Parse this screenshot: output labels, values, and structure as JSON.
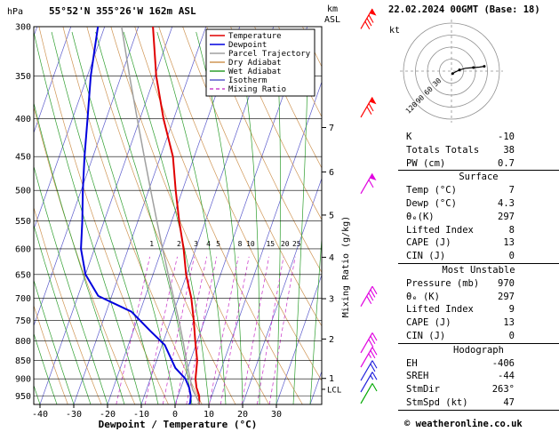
{
  "header": {
    "hpa_label": "hPa",
    "title": "55°52'N 355°26'W 162m ASL",
    "datetime": "22.02.2024 00GMT (Base: 18)",
    "km_label": "km",
    "asl_label": "ASL"
  },
  "legend": {
    "items": [
      {
        "label": "Temperature",
        "color": "#e00000",
        "dash": ""
      },
      {
        "label": "Dewpoint",
        "color": "#0000dd",
        "dash": ""
      },
      {
        "label": "Parcel Trajectory",
        "color": "#a0a0a0",
        "dash": ""
      },
      {
        "label": "Dry Adiabat",
        "color": "#cf9554",
        "dash": ""
      },
      {
        "label": "Wet Adiabat",
        "color": "#2e9e2e",
        "dash": ""
      },
      {
        "label": "Isotherm",
        "color": "#5c5ccc",
        "dash": ""
      },
      {
        "label": "Mixing Ratio",
        "color": "#cc44cc",
        "dash": "4 3"
      }
    ]
  },
  "axes": {
    "pressure_ticks": [
      300,
      350,
      400,
      450,
      500,
      550,
      600,
      650,
      700,
      750,
      800,
      850,
      900,
      950
    ],
    "temp_ticks": [
      -40,
      -30,
      -20,
      -10,
      0,
      10,
      20,
      30
    ],
    "x_label": "Dewpoint / Temperature (°C)",
    "mixing_ratio_axis_label": "Mixing Ratio (g/kg)",
    "km_ticks": [
      {
        "label": "7",
        "p": 411
      },
      {
        "label": "6",
        "p": 472
      },
      {
        "label": "5",
        "p": 540
      },
      {
        "label": "4",
        "p": 616
      },
      {
        "label": "3",
        "p": 701
      },
      {
        "label": "2",
        "p": 795
      },
      {
        "label": "1",
        "p": 899
      }
    ],
    "lcl": {
      "label": "LCL",
      "p": 930
    }
  },
  "chart_data": {
    "type": "line",
    "subtype": "skew-t log-p sounding",
    "pressure_range_hpa": [
      300,
      975
    ],
    "temperature_range_c": [
      -40,
      35
    ],
    "series": [
      {
        "name": "Temperature",
        "color": "#e00000",
        "width": 2,
        "points_p_t": [
          [
            975,
            6.6
          ],
          [
            970,
            7
          ],
          [
            950,
            6.3
          ],
          [
            925,
            4.6
          ],
          [
            900,
            3.4
          ],
          [
            850,
            2
          ],
          [
            800,
            -0.6
          ],
          [
            750,
            -3.2
          ],
          [
            700,
            -6.2
          ],
          [
            650,
            -10.2
          ],
          [
            600,
            -13.6
          ],
          [
            550,
            -17.8
          ],
          [
            500,
            -22
          ],
          [
            450,
            -26.3
          ],
          [
            400,
            -33
          ],
          [
            350,
            -39.6
          ],
          [
            300,
            -45.7
          ]
        ]
      },
      {
        "name": "Dewpoint",
        "color": "#0000dd",
        "width": 2,
        "points_p_t": [
          [
            975,
            4.2
          ],
          [
            970,
            4.3
          ],
          [
            950,
            3.8
          ],
          [
            925,
            2.4
          ],
          [
            900,
            0.4
          ],
          [
            870,
            -3.7
          ],
          [
            850,
            -5.5
          ],
          [
            810,
            -9.2
          ],
          [
            775,
            -15
          ],
          [
            730,
            -22.5
          ],
          [
            695,
            -34
          ],
          [
            650,
            -40
          ],
          [
            600,
            -44
          ],
          [
            550,
            -46.5
          ],
          [
            500,
            -49.5
          ],
          [
            450,
            -52.5
          ],
          [
            400,
            -55.5
          ],
          [
            350,
            -59
          ],
          [
            300,
            -62
          ]
        ]
      },
      {
        "name": "Parcel Trajectory",
        "color": "#a0a0a0",
        "width": 1.5,
        "points_p_t": [
          [
            975,
            6.4
          ],
          [
            970,
            7
          ],
          [
            930,
            3.6
          ],
          [
            900,
            1.8
          ],
          [
            850,
            -1.2
          ],
          [
            800,
            -4.2
          ],
          [
            750,
            -7.6
          ],
          [
            700,
            -11.4
          ],
          [
            650,
            -15.5
          ],
          [
            600,
            -19.8
          ],
          [
            550,
            -24.4
          ],
          [
            500,
            -29.4
          ],
          [
            450,
            -34.8
          ],
          [
            400,
            -40.8
          ],
          [
            350,
            -47.5
          ],
          [
            300,
            -55
          ]
        ]
      }
    ],
    "background": {
      "isotherms_c": {
        "min": -110,
        "max": 40,
        "step": 10,
        "color": "#5c5ccc"
      },
      "dry_adiabats_c": {
        "min": -40,
        "max": 170,
        "step": 10,
        "color": "#cf9554"
      },
      "wet_adiabats_c": {
        "min": -40,
        "max": 40,
        "step": 5,
        "color": "#2e9e2e"
      },
      "mixing_ratio_g_kg": [
        1,
        2,
        3,
        4,
        5,
        8,
        10,
        15,
        20,
        25
      ],
      "mixing_ratio_color": "#cc44cc"
    },
    "wind_barbs": [
      {
        "p": 302,
        "speed_kt": 80,
        "color": "#ff0000"
      },
      {
        "p": 398,
        "speed_kt": 70,
        "color": "#ff0000"
      },
      {
        "p": 505,
        "speed_kt": 60,
        "color": "#e000e0"
      },
      {
        "p": 718,
        "speed_kt": 40,
        "color": "#e000e0"
      },
      {
        "p": 830,
        "speed_kt": 30,
        "color": "#e000e0"
      },
      {
        "p": 868,
        "speed_kt": 25,
        "color": "#e000e0"
      },
      {
        "p": 905,
        "speed_kt": 20,
        "color": "#2020dd"
      },
      {
        "p": 938,
        "speed_kt": 15,
        "color": "#2020dd"
      },
      {
        "p": 972,
        "speed_kt": 10,
        "color": "#00a800"
      }
    ],
    "hodograph_trace_uv_kt": [
      [
        3,
        -6
      ],
      [
        10,
        -2
      ],
      [
        20,
        3
      ],
      [
        35,
        7
      ],
      [
        55,
        9
      ],
      [
        70,
        10
      ],
      [
        82,
        12
      ]
    ]
  },
  "hodograph": {
    "unit_label": "kt",
    "rings_kt": [
      30,
      60,
      90,
      120
    ]
  },
  "table": {
    "sections": [
      {
        "title": "",
        "rows": [
          [
            "K",
            "-10"
          ],
          [
            "Totals Totals",
            "38"
          ],
          [
            "PW (cm)",
            "0.7"
          ]
        ]
      },
      {
        "title": "Surface",
        "rows": [
          [
            "Temp (°C)",
            "7"
          ],
          [
            "Dewp (°C)",
            "4.3"
          ],
          [
            "θₑ(K)",
            "297"
          ],
          [
            "Lifted Index",
            "8"
          ],
          [
            "CAPE (J)",
            "13"
          ],
          [
            "CIN (J)",
            "0"
          ]
        ]
      },
      {
        "title": "Most Unstable",
        "rows": [
          [
            "Pressure (mb)",
            "970"
          ],
          [
            "θₑ (K)",
            "297"
          ],
          [
            "Lifted Index",
            "9"
          ],
          [
            "CAPE (J)",
            "13"
          ],
          [
            "CIN (J)",
            "0"
          ]
        ]
      },
      {
        "title": "Hodograph",
        "rows": [
          [
            "EH",
            "-406"
          ],
          [
            "SREH",
            "-44"
          ],
          [
            "StmDir",
            "263°"
          ],
          [
            "StmSpd (kt)",
            "47"
          ]
        ]
      }
    ]
  },
  "footer": {
    "copyright": "© weatheronline.co.uk"
  }
}
